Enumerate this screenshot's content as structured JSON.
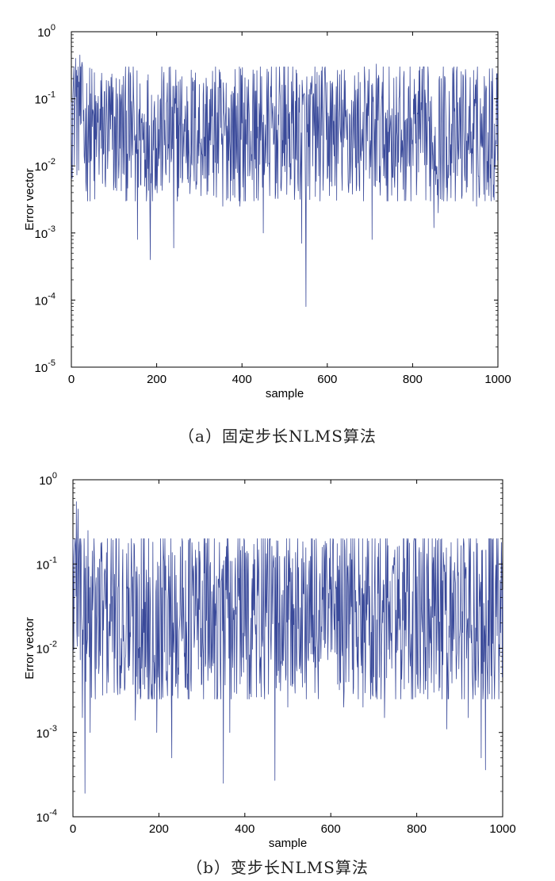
{
  "chart_data": [
    {
      "type": "line",
      "xlabel": "sample",
      "ylabel": "Error vector",
      "xlim": [
        0,
        1000
      ],
      "ylim": [
        1e-05,
        1
      ],
      "yscale": "log",
      "x_ticks": [
        "0",
        "200",
        "400",
        "600",
        "800",
        "1000"
      ],
      "y_ticks": [
        {
          "base": "10",
          "exp": "0"
        },
        {
          "base": "10",
          "exp": "-1"
        },
        {
          "base": "10",
          "exp": "-2"
        },
        {
          "base": "10",
          "exp": "-3"
        },
        {
          "base": "10",
          "exp": "-4"
        },
        {
          "base": "10",
          "exp": "-5"
        }
      ],
      "line_color": "#3a4a9a",
      "grid": false,
      "caption": "（a）固定步长NLMS算法",
      "series": [
        {
          "x": [
            0,
            5,
            10,
            15,
            20,
            25,
            30,
            40,
            55,
            60,
            100,
            150,
            155,
            185,
            240,
            355,
            395,
            450,
            540,
            550,
            555,
            650,
            705,
            715,
            765,
            810,
            850,
            860,
            900,
            950,
            980,
            995,
            1000
          ],
          "y": [
            0.09,
            0.2,
            0.4,
            0.15,
            0.45,
            0.35,
            0.014,
            0.08,
            0.0032,
            0.03,
            0.006,
            0.003,
            0.0008,
            0.0004,
            0.0006,
            0.0025,
            0.0025,
            0.001,
            0.0007,
            8e-05,
            0.005,
            0.004,
            0.0008,
            0.33,
            0.003,
            0.007,
            0.0012,
            0.002,
            0.003,
            0.0025,
            0.28,
            0.024,
            0.1
          ]
        }
      ]
    },
    {
      "type": "line",
      "xlabel": "sample",
      "ylabel": "Error vector",
      "xlim": [
        0,
        1000
      ],
      "ylim": [
        0.0001,
        1
      ],
      "yscale": "log",
      "x_ticks": [
        "0",
        "200",
        "400",
        "600",
        "800",
        "1000"
      ],
      "y_ticks": [
        {
          "base": "10",
          "exp": "0"
        },
        {
          "base": "10",
          "exp": "-1"
        },
        {
          "base": "10",
          "exp": "-2"
        },
        {
          "base": "10",
          "exp": "-3"
        },
        {
          "base": "10",
          "exp": "-4"
        }
      ],
      "line_color": "#3a4a9a",
      "grid": false,
      "caption": "（b）变步长NLMS算法",
      "series": [
        {
          "x": [
            0,
            8,
            12,
            18,
            22,
            28,
            35,
            40,
            60,
            145,
            195,
            230,
            250,
            350,
            365,
            470,
            500,
            630,
            675,
            725,
            840,
            870,
            880,
            920,
            950,
            960,
            1000
          ],
          "y": [
            0.2,
            0.55,
            0.45,
            0.2,
            0.0015,
            0.00019,
            0.25,
            0.001,
            0.005,
            0.0014,
            0.001,
            0.0005,
            0.16,
            0.00025,
            0.001,
            0.00027,
            0.002,
            0.002,
            0.002,
            0.0015,
            0.003,
            0.0011,
            0.18,
            0.0015,
            0.0005,
            0.00036,
            0.05
          ]
        }
      ]
    }
  ]
}
